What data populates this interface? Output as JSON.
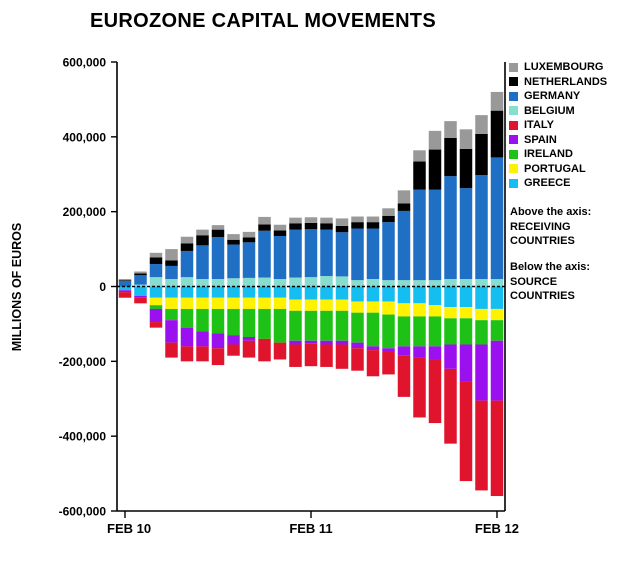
{
  "chart_data": {
    "type": "bar",
    "stacked": true,
    "title": "EUROZONE CAPITAL MOVEMENTS",
    "ylabel": "MILLIONS OF EUROS",
    "xlabel": "",
    "ylim": [
      -600000,
      600000
    ],
    "yticks": [
      -600000,
      -400000,
      -200000,
      0,
      200000,
      400000,
      600000
    ],
    "ytick_labels": [
      "-600,000",
      "-400,000",
      "-200,000",
      "0",
      "200,000",
      "400,000",
      "600,000"
    ],
    "xtick_labels": [
      "FEB 10",
      "FEB 11",
      "FEB 12"
    ],
    "xtick_category_index": [
      0,
      12,
      24
    ],
    "categories": [
      "Feb 2010",
      "Mar 2010",
      "Apr 2010",
      "May 2010",
      "Jun 2010",
      "Jul 2010",
      "Aug 2010",
      "Sep 2010",
      "Oct 2010",
      "Nov 2010",
      "Dec 2010",
      "Jan 2011",
      "Feb 2011",
      "Mar 2011",
      "Apr 2011",
      "May 2011",
      "Jun 2011",
      "Jul 2011",
      "Aug 2011",
      "Sep 2011",
      "Oct 2011",
      "Nov 2011",
      "Dec 2011",
      "Jan 2012",
      "Feb 2012"
    ],
    "legend_position": "right",
    "legend_title": "",
    "grid": false,
    "series": [
      {
        "name": "LUXEMBOURG",
        "color": "#999999",
        "values": [
          3000,
          5000,
          12000,
          30000,
          18000,
          15000,
          12000,
          15000,
          15000,
          20000,
          15000,
          15000,
          15000,
          15000,
          20000,
          15000,
          15000,
          20000,
          35000,
          30000,
          50000,
          45000,
          52000,
          50000,
          50000
        ]
      },
      {
        "name": "NETHERLANDS",
        "color": "#000000",
        "values": [
          2000,
          5000,
          18000,
          15000,
          20000,
          27000,
          20000,
          13000,
          13000,
          17000,
          15000,
          17000,
          17000,
          17000,
          17000,
          17000,
          17000,
          17000,
          20000,
          75000,
          107000,
          102000,
          105000,
          110000,
          125000
        ]
      },
      {
        "name": "GERMANY",
        "color": "#1F6FC5",
        "values": [
          15000,
          25000,
          35000,
          35000,
          70000,
          90000,
          112000,
          90000,
          95000,
          125000,
          115000,
          128000,
          128000,
          124000,
          118000,
          138000,
          135000,
          155000,
          185000,
          242000,
          242000,
          275000,
          243000,
          278000,
          325000
        ]
      },
      {
        "name": "BELGIUM",
        "color": "#88DDCF",
        "values": [
          0,
          5000,
          25000,
          20000,
          25000,
          20000,
          20000,
          22000,
          23000,
          24000,
          20000,
          24000,
          25000,
          28000,
          27000,
          17000,
          20000,
          17000,
          17000,
          17000,
          17000,
          20000,
          20000,
          20000,
          20000
        ]
      },
      {
        "name": "ITALY",
        "color": "#E0142D",
        "values": [
          -15000,
          -15000,
          -15000,
          -40000,
          -40000,
          -40000,
          -45000,
          -30000,
          -45000,
          -60000,
          -45000,
          -60000,
          -60000,
          -60000,
          -65000,
          -60000,
          -70000,
          -60000,
          -110000,
          -160000,
          -170000,
          -200000,
          -265000,
          -240000,
          -255000
        ]
      },
      {
        "name": "SPAIN",
        "color": "#9B10EE",
        "values": [
          -5000,
          -5000,
          -35000,
          -60000,
          -50000,
          -40000,
          -40000,
          -25000,
          -10000,
          0,
          0,
          -10000,
          -8000,
          -10000,
          -10000,
          -15000,
          -10000,
          -10000,
          -25000,
          -30000,
          -35000,
          -65000,
          -100000,
          -150000,
          -160000
        ]
      },
      {
        "name": "IRELAND",
        "color": "#1EC216",
        "values": [
          0,
          0,
          -10000,
          -30000,
          -50000,
          -60000,
          -65000,
          -70000,
          -75000,
          -80000,
          -90000,
          -80000,
          -80000,
          -80000,
          -80000,
          -80000,
          -90000,
          -90000,
          -80000,
          -80000,
          -80000,
          -70000,
          -70000,
          -65000,
          -55000
        ]
      },
      {
        "name": "PORTUGAL",
        "color": "#FFF200",
        "values": [
          0,
          0,
          -20000,
          -30000,
          -30000,
          -30000,
          -30000,
          -30000,
          -30000,
          -30000,
          -30000,
          -30000,
          -30000,
          -30000,
          -30000,
          -30000,
          -30000,
          -35000,
          -35000,
          -35000,
          -30000,
          -30000,
          -30000,
          -30000,
          -30000
        ]
      },
      {
        "name": "GREECE",
        "color": "#14BEF0",
        "values": [
          -10000,
          -25000,
          -30000,
          -30000,
          -30000,
          -30000,
          -30000,
          -30000,
          -30000,
          -30000,
          -30000,
          -35000,
          -35000,
          -35000,
          -35000,
          -40000,
          -40000,
          -40000,
          -45000,
          -45000,
          -50000,
          -55000,
          -55000,
          -60000,
          -60000
        ]
      }
    ],
    "annotations": [
      {
        "lines": [
          "Above the axis:",
          "RECEIVING",
          "COUNTRIES"
        ]
      },
      {
        "lines": [
          "Below the axis:",
          "SOURCE",
          "COUNTRIES"
        ]
      }
    ]
  }
}
